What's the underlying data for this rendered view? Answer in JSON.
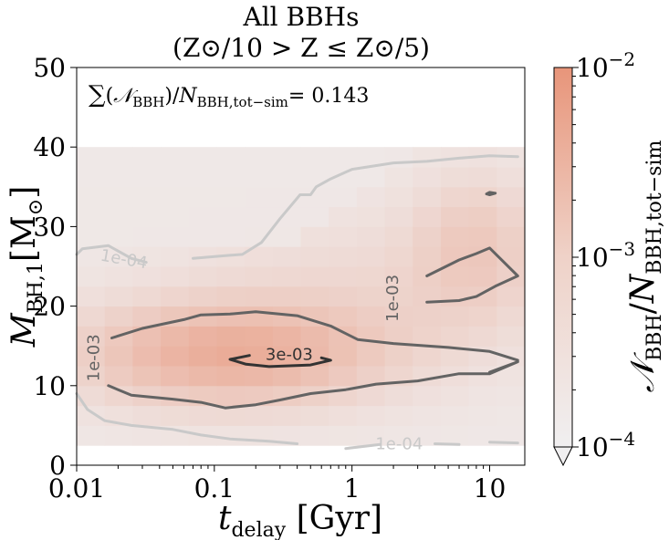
{
  "title_line1": "All BBHs",
  "title_line2": "(Z⊙/10 > Z ≤ Z⊙/5)",
  "annotation": "∑(𝒩BBH)/NBBH,tot−sim= 0.143",
  "chart_data": {
    "type": "heatmap",
    "xlabel": "tdelay [Gyr]",
    "ylabel": "MBH,1[M⊙]",
    "xscale": "log",
    "xlim": [
      0.01,
      18
    ],
    "ylim": [
      0,
      50
    ],
    "x_ticks": [
      {
        "value": 0.01,
        "label": "0.01"
      },
      {
        "value": 0.1,
        "label": "0.1"
      },
      {
        "value": 1,
        "label": "1"
      },
      {
        "value": 10,
        "label": "10"
      }
    ],
    "y_ticks": [
      0,
      10,
      20,
      30,
      40,
      50
    ],
    "colorbar": {
      "label": "𝒩BBH/NBBH,tot−sim",
      "scale": "log",
      "range": [
        0.0001,
        0.01
      ],
      "ticks": [
        {
          "value": 0.01,
          "label": "10−2"
        },
        {
          "value": 0.001,
          "label": "10−3"
        },
        {
          "value": 0.0001,
          "label": "10−4"
        }
      ],
      "color_low": "#f0eff0",
      "color_high": "#e8957a"
    },
    "contours": [
      {
        "level": "1e-04",
        "label": "1e-04",
        "color": "#c9c9c9",
        "paths": [
          [
            [
              0.01,
              26.5
            ],
            [
              0.011,
              27.2
            ],
            [
              0.017,
              27.6
            ],
            [
              0.025,
              26.0
            ],
            [
              0.032,
              25.5
            ]
          ],
          [
            [
              0.07,
              26.0
            ],
            [
              0.11,
              26.3
            ],
            [
              0.16,
              26.5
            ],
            [
              0.22,
              28.0
            ],
            [
              0.3,
              31.0
            ],
            [
              0.42,
              34.0
            ],
            [
              0.5,
              34.0
            ],
            [
              0.55,
              35.0
            ],
            [
              0.7,
              36.0
            ],
            [
              1.0,
              37.2
            ],
            [
              2.0,
              38.0
            ],
            [
              3.5,
              38.2
            ],
            [
              6.0,
              38.6
            ],
            [
              10.0,
              38.9
            ],
            [
              16.0,
              38.8
            ]
          ],
          [
            [
              0.01,
              9.0
            ],
            [
              0.012,
              7.0
            ],
            [
              0.016,
              5.6
            ],
            [
              0.025,
              5.0
            ],
            [
              0.05,
              4.5
            ],
            [
              0.08,
              3.8
            ],
            [
              0.13,
              3.3
            ],
            [
              0.25,
              3.0
            ],
            [
              0.4,
              2.7
            ]
          ],
          [
            [
              0.9,
              2.1
            ],
            [
              1.6,
              2.6
            ]
          ],
          [
            [
              4.0,
              2.7
            ],
            [
              6.0,
              2.6
            ]
          ],
          [
            [
              10.0,
              2.9
            ],
            [
              16.0,
              2.8
            ]
          ]
        ],
        "labels": [
          {
            "x": 0.022,
            "y": 25.8,
            "text": "1e-04",
            "rotation": 10
          },
          {
            "x": 2.2,
            "y": 2.6,
            "text": "1e-04",
            "rotation": 0
          }
        ]
      },
      {
        "level": "1e-03",
        "label": "1e-03",
        "color": "#636363",
        "paths": [
          [
            [
              0.017,
              10.0
            ],
            [
              0.025,
              8.8
            ],
            [
              0.05,
              8.3
            ],
            [
              0.08,
              7.9
            ],
            [
              0.12,
              7.2
            ],
            [
              0.2,
              7.6
            ],
            [
              0.3,
              8.2
            ],
            [
              0.5,
              9.0
            ],
            [
              0.9,
              9.5
            ],
            [
              1.5,
              10.2
            ],
            [
              3.0,
              10.6
            ],
            [
              6.0,
              11.5
            ],
            [
              10.0,
              11.5
            ],
            [
              16.0,
              13.0
            ],
            [
              10.0,
              11.7
            ]
          ],
          [
            [
              0.018,
              16.0
            ],
            [
              0.03,
              17.2
            ],
            [
              0.06,
              18.3
            ],
            [
              0.08,
              18.9
            ],
            [
              0.13,
              19.0
            ],
            [
              0.2,
              19.3
            ],
            [
              0.4,
              18.8
            ],
            [
              0.7,
              17.5
            ],
            [
              1.1,
              15.8
            ],
            [
              2.0,
              15.3
            ],
            [
              5.0,
              14.8
            ],
            [
              10.0,
              14.3
            ],
            [
              16.0,
              13.2
            ]
          ],
          [
            [
              3.5,
              20.5
            ],
            [
              6.0,
              20.7
            ],
            [
              8.0,
              21.2
            ],
            [
              11.0,
              22.5
            ],
            [
              16.0,
              23.8
            ],
            [
              10.0,
              27.3
            ],
            [
              8.0,
              26.6
            ],
            [
              6.0,
              25.8
            ],
            [
              3.5,
              23.8
            ]
          ],
          [
            [
              9.5,
              34.1
            ],
            [
              10.0,
              34.3
            ],
            [
              11.0,
              34.2
            ],
            [
              10.0,
              34.0
            ],
            [
              9.5,
              34.1
            ]
          ]
        ],
        "labels": [
          {
            "x": 0.0135,
            "y": 13.5,
            "text": "1e-03",
            "rotation": -90
          },
          {
            "x": 2.0,
            "y": 21.0,
            "text": "1e-03",
            "rotation": -90
          }
        ]
      },
      {
        "level": "3e-03",
        "label": "3e-03",
        "color": "#333333",
        "paths": [
          [
            [
              0.18,
              13.8
            ],
            [
              0.13,
              13.3
            ],
            [
              0.17,
              12.7
            ],
            [
              0.25,
              12.4
            ],
            [
              0.5,
              12.6
            ],
            [
              0.7,
              13.2
            ],
            [
              0.6,
              13.5
            ]
          ]
        ],
        "labels": [
          {
            "x": 0.35,
            "y": 13.8,
            "text": "3e-03",
            "rotation": 0
          }
        ]
      }
    ]
  }
}
